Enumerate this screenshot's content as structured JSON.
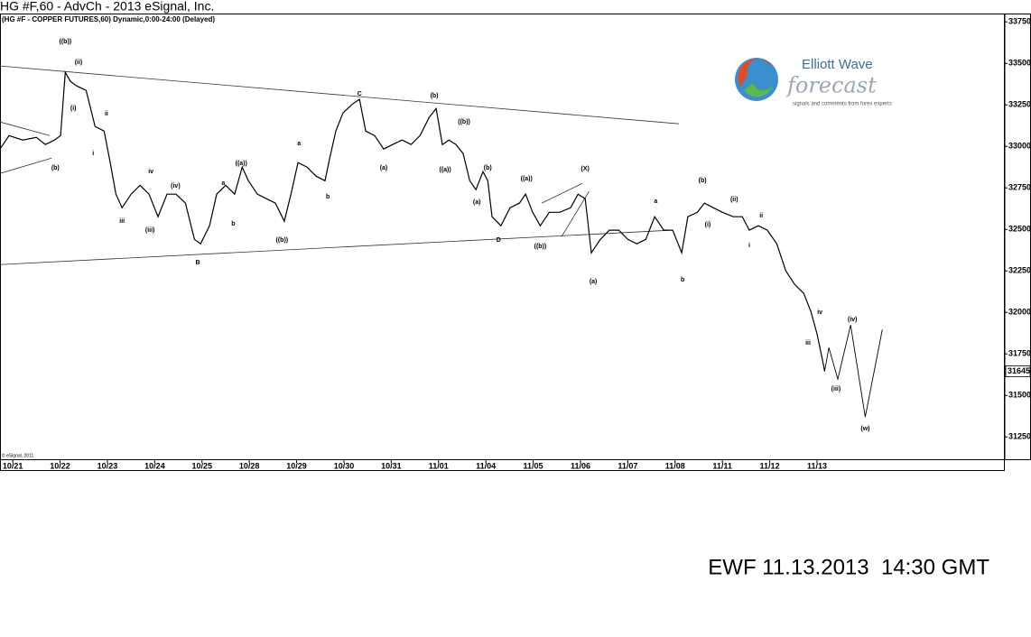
{
  "chart_data": {
    "type": "line",
    "title": "HG #F,60 - AdvCh - 2013 eSignal, Inc.",
    "subtitle": "(HG #F - COPPER FUTURES,60) Dynamic,0:00-24:00 (Delayed)",
    "copyright": "© eSignal, 2011",
    "footer": "EWF 11.13.2013  14:30 GMT",
    "logo": {
      "title": "Elliott Wave",
      "subtitle": "forecast",
      "tagline": "signals and comments from forex experts"
    },
    "grid": false,
    "xlim": [
      -0.27,
      20.97
    ],
    "ylim": [
      31110,
      33800
    ],
    "xticks": [
      {
        "value": 0,
        "label": "10/21"
      },
      {
        "value": 1,
        "label": "10/22"
      },
      {
        "value": 2,
        "label": "10/23"
      },
      {
        "value": 3,
        "label": "10/24"
      },
      {
        "value": 4,
        "label": "10/25"
      },
      {
        "value": 5,
        "label": "10/28"
      },
      {
        "value": 6,
        "label": "10/29"
      },
      {
        "value": 7,
        "label": "10/30"
      },
      {
        "value": 8,
        "label": "10/31"
      },
      {
        "value": 9,
        "label": "11/01"
      },
      {
        "value": 10,
        "label": "11/04"
      },
      {
        "value": 11,
        "label": "11/05"
      },
      {
        "value": 12,
        "label": "11/06"
      },
      {
        "value": 13,
        "label": "11/07"
      },
      {
        "value": 14,
        "label": "11/08"
      },
      {
        "value": 15,
        "label": "11/11"
      },
      {
        "value": 16,
        "label": "11/12"
      },
      {
        "value": 17,
        "label": "11/13"
      }
    ],
    "yticks": [
      31250,
      31500,
      31750,
      32000,
      32250,
      32500,
      32750,
      33000,
      33250,
      33500,
      33750
    ],
    "last_price": 31645,
    "series": [
      {
        "color": "#000000",
        "x": [
          -0.27,
          -0.08,
          0.21,
          0.5,
          0.69,
          0.88,
          1.01,
          1.11,
          1.22,
          1.35,
          1.55,
          1.74,
          1.93,
          2.06,
          2.18,
          2.31,
          2.5,
          2.69,
          2.88,
          3.07,
          3.26,
          3.45,
          3.65,
          3.84,
          3.97,
          4.16,
          4.31,
          4.5,
          4.69,
          4.85,
          4.98,
          5.17,
          5.36,
          5.55,
          5.74,
          5.88,
          6.03,
          6.22,
          6.41,
          6.6,
          6.7,
          6.83,
          6.98,
          7.18,
          7.33,
          7.46,
          7.65,
          7.84,
          8.03,
          8.23,
          8.42,
          8.61,
          8.8,
          8.95,
          9.08,
          9.22,
          9.37,
          9.52,
          9.66,
          9.79,
          9.94,
          10.04,
          10.13,
          10.32,
          10.51,
          10.71,
          10.84,
          10.99,
          11.15,
          11.34,
          11.56,
          11.79,
          11.95,
          12.1,
          12.23,
          12.42,
          12.61,
          12.81,
          13.0,
          13.19,
          13.38,
          13.57,
          13.76,
          13.95,
          14.14,
          14.27,
          14.47,
          14.62,
          14.81,
          15.0,
          15.23,
          15.42,
          15.57,
          15.76,
          15.95,
          16.15,
          16.34,
          16.53,
          16.72,
          16.87,
          17.0,
          17.14,
          17.16
        ],
        "values": [
          32984,
          33065,
          33038,
          33054,
          33011,
          33038,
          33065,
          33446,
          33391,
          33364,
          33337,
          33120,
          33092,
          32902,
          32712,
          32630,
          32712,
          32766,
          32712,
          32576,
          32712,
          32712,
          32658,
          32440,
          32413,
          32522,
          32712,
          32766,
          32712,
          32875,
          32793,
          32712,
          32685,
          32658,
          32549,
          32712,
          32902,
          32875,
          32821,
          32793,
          32929,
          33092,
          33201,
          33255,
          33283,
          33092,
          33065,
          32984,
          33011,
          33038,
          33011,
          33065,
          33174,
          33228,
          33011,
          33038,
          33011,
          32956,
          32793,
          32739,
          32848,
          32793,
          32576,
          32522,
          32630,
          32658,
          32712,
          32603,
          32522,
          32603,
          32603,
          32630,
          32712,
          32685,
          32359,
          32440,
          32495,
          32495,
          32440,
          32413,
          32440,
          32576,
          32495,
          32495,
          32359,
          32576,
          32603,
          32658,
          32630,
          32603,
          32576,
          32576,
          32495,
          32522,
          32495,
          32413,
          32250,
          32168,
          32114,
          32005,
          31870,
          31679,
          31645
        ]
      },
      {
        "color": "#000000",
        "x": [
          17.16,
          17.25,
          17.44,
          17.71,
          18.02,
          18.38
        ],
        "values": [
          31645,
          31788,
          31598,
          31924,
          31370,
          31897
        ]
      }
    ],
    "trendlines": [
      {
        "x": [
          -0.27,
          14.08
        ],
        "values": [
          33484,
          33136
        ]
      },
      {
        "x": [
          -0.27,
          13.85
        ],
        "values": [
          32288,
          32494
        ]
      },
      {
        "x": [
          -0.27,
          0.78
        ],
        "values": [
          33147,
          33065
        ]
      },
      {
        "x": [
          -0.27,
          0.82
        ],
        "values": [
          32837,
          32929
        ]
      },
      {
        "x": [
          11.18,
          12.04
        ],
        "values": [
          32658,
          32777
        ]
      },
      {
        "x": [
          11.6,
          12.18
        ],
        "values": [
          32456,
          32728
        ]
      }
    ],
    "annotations": [
      {
        "text": "((b))",
        "x": 1.11,
        "y": 33630
      },
      {
        "text": "(ii)",
        "x": 1.39,
        "y": 33505
      },
      {
        "text": "(i)",
        "x": 1.28,
        "y": 33228
      },
      {
        "text": "ii",
        "x": 1.98,
        "y": 33196
      },
      {
        "text": "i",
        "x": 1.7,
        "y": 32956
      },
      {
        "text": "(b)",
        "x": 0.9,
        "y": 32870
      },
      {
        "text": "iii",
        "x": 2.31,
        "y": 32549
      },
      {
        "text": "iv",
        "x": 2.92,
        "y": 32848
      },
      {
        "text": "(iii)",
        "x": 2.9,
        "y": 32495
      },
      {
        "text": "(iv)",
        "x": 3.44,
        "y": 32761
      },
      {
        "text": "a",
        "x": 4.45,
        "y": 32777
      },
      {
        "text": "((a))",
        "x": 4.83,
        "y": 32897
      },
      {
        "text": "b",
        "x": 4.66,
        "y": 32533
      },
      {
        "text": "B",
        "x": 3.91,
        "y": 32299
      },
      {
        "text": "((b))",
        "x": 5.69,
        "y": 32435
      },
      {
        "text": "a",
        "x": 6.05,
        "y": 33016
      },
      {
        "text": "b",
        "x": 6.66,
        "y": 32696
      },
      {
        "text": "C",
        "x": 7.33,
        "y": 33315
      },
      {
        "text": "(a)",
        "x": 7.84,
        "y": 32870
      },
      {
        "text": "(b)",
        "x": 8.91,
        "y": 33304
      },
      {
        "text": "((b))",
        "x": 9.54,
        "y": 33147
      },
      {
        "text": "((a))",
        "x": 9.14,
        "y": 32859
      },
      {
        "text": "(b)",
        "x": 10.04,
        "y": 32870
      },
      {
        "text": "(a)",
        "x": 9.81,
        "y": 32663
      },
      {
        "text": "D",
        "x": 10.27,
        "y": 32435
      },
      {
        "text": "((a))",
        "x": 10.86,
        "y": 32804
      },
      {
        "text": "((b))",
        "x": 11.15,
        "y": 32397
      },
      {
        "text": "(X)",
        "x": 12.1,
        "y": 32864
      },
      {
        "text": "(a)",
        "x": 12.27,
        "y": 32185
      },
      {
        "text": "a",
        "x": 13.59,
        "y": 32668
      },
      {
        "text": "b",
        "x": 14.16,
        "y": 32196
      },
      {
        "text": "(b)",
        "x": 14.58,
        "y": 32793
      },
      {
        "text": "(ii)",
        "x": 15.25,
        "y": 32679
      },
      {
        "text": "(i)",
        "x": 14.69,
        "y": 32527
      },
      {
        "text": "ii",
        "x": 15.82,
        "y": 32581
      },
      {
        "text": "i",
        "x": 15.57,
        "y": 32402
      },
      {
        "text": "iv",
        "x": 17.06,
        "y": 32000
      },
      {
        "text": "iii",
        "x": 16.81,
        "y": 31815
      },
      {
        "text": "(iii)",
        "x": 17.4,
        "y": 31538
      },
      {
        "text": "(iv)",
        "x": 17.75,
        "y": 31956
      },
      {
        "text": "(w)",
        "x": 18.02,
        "y": 31299
      }
    ]
  }
}
